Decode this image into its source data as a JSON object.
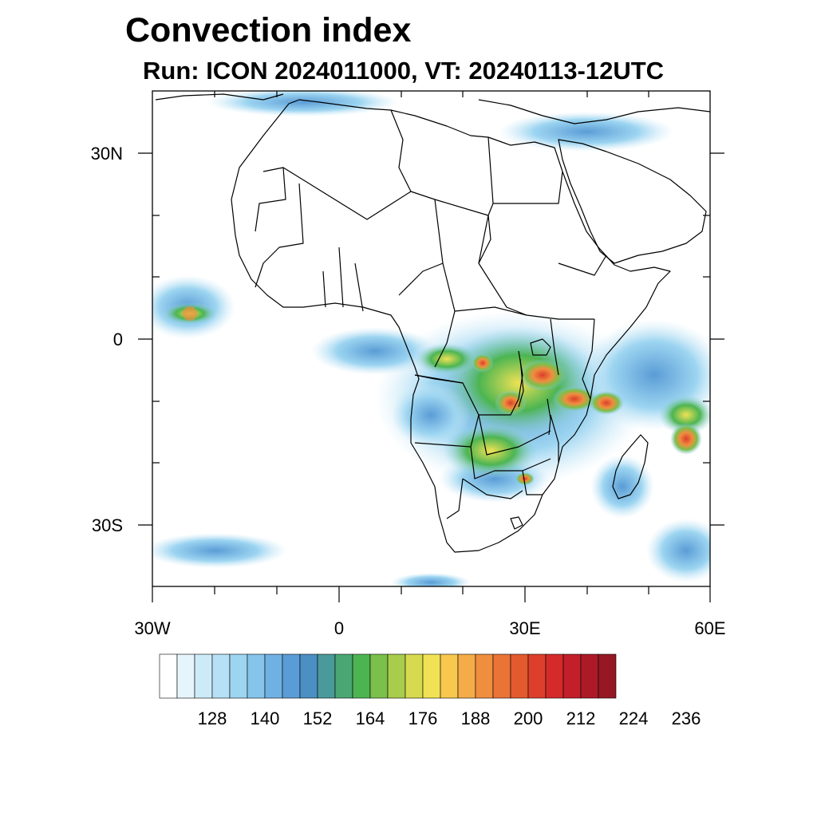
{
  "title": "Convection index",
  "subtitle": "Run: ICON 2024011000,  VT: 20240113-12UTC",
  "map_data": {
    "type": "filled-contour-map",
    "region": "Africa",
    "projection": "cylindrical equidistant",
    "lon_range": [
      -30,
      60
    ],
    "lat_range": [
      -40,
      40
    ],
    "lat_ticks": [
      {
        "value": 30,
        "label": "30N"
      },
      {
        "value": 0,
        "label": "0"
      },
      {
        "value": -30,
        "label": "30S"
      }
    ],
    "lon_ticks": [
      {
        "value": -30,
        "label": "30W"
      },
      {
        "value": 0,
        "label": "0"
      },
      {
        "value": 30,
        "label": "30E"
      },
      {
        "value": 60,
        "label": "60E"
      }
    ]
  },
  "colorbar": {
    "levels": [
      128,
      140,
      152,
      164,
      176,
      188,
      200,
      212,
      224,
      236
    ],
    "colors": [
      "#ffffff",
      "#e6f4fb",
      "#cdeaf8",
      "#b5e0f5",
      "#9dd5f1",
      "#85c5ec",
      "#6fb1e2",
      "#5a9cd6",
      "#4b8fc3",
      "#4a9a9a",
      "#4aa774",
      "#4cb552",
      "#7ac04a",
      "#a8cc4c",
      "#d6da4e",
      "#f0e254",
      "#f7c74e",
      "#f4ab48",
      "#ef8e3f",
      "#ea7336",
      "#e35a2f",
      "#dc3f2b",
      "#d42a2a",
      "#c21f2b",
      "#ac1a28",
      "#961824"
    ]
  }
}
